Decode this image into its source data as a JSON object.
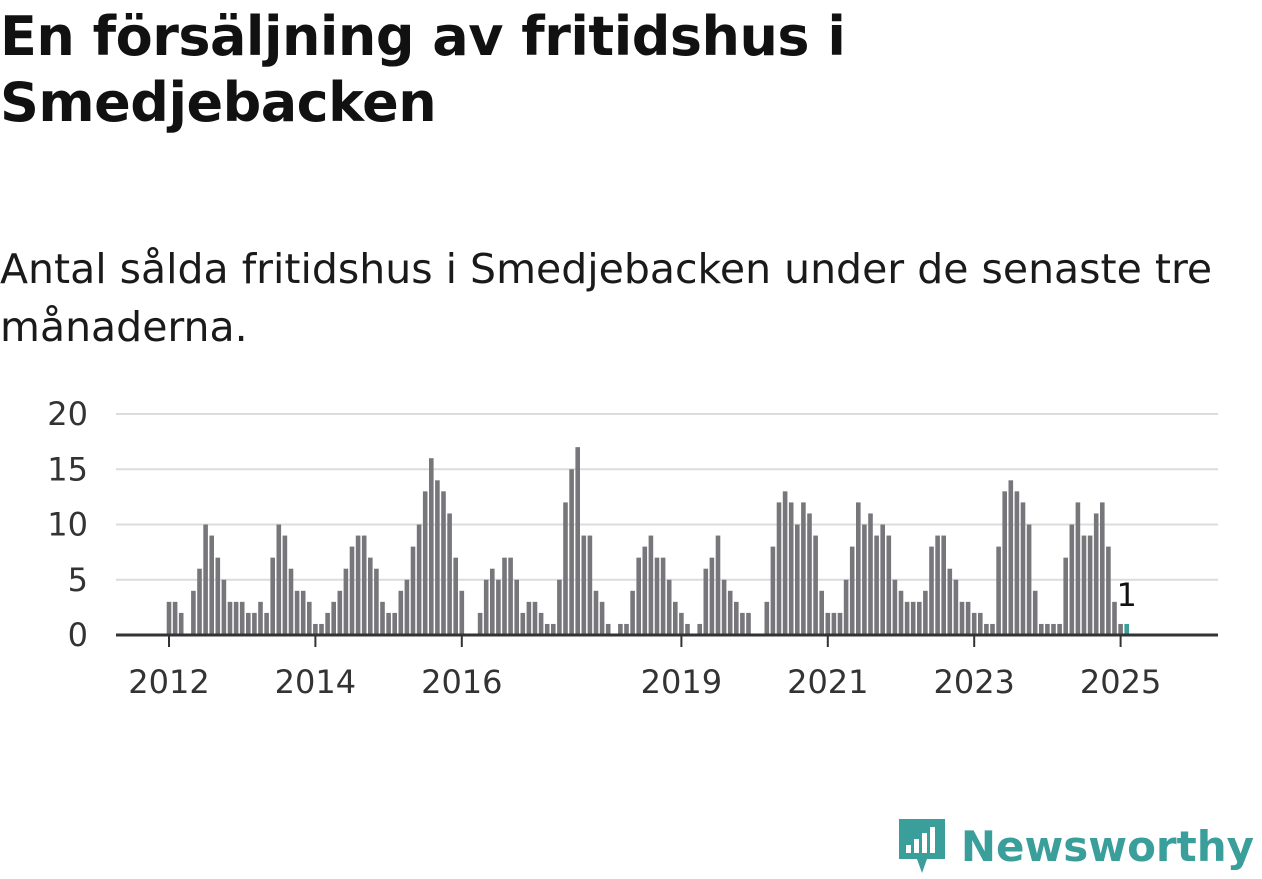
{
  "title": "En försäljning av fritidshus i Smedjebacken",
  "subtitle": "Antal sålda fritidshus i Smedjebacken under de senaste tre månaderna.",
  "brand": {
    "name": "Newsworthy",
    "icon": "newsworthy-logo-icon",
    "color": "#3a9e9b"
  },
  "colors": {
    "bar": "#77767b",
    "highlight": "#3a9e9b",
    "grid": "#dcdcdc",
    "axis": "#333333"
  },
  "chart_data": {
    "type": "bar",
    "title": "En försäljning av fritidshus i Smedjebacken",
    "xlabel": "",
    "ylabel": "",
    "x_start": "2012-01",
    "frequency": "monthly",
    "ylim": [
      0,
      20
    ],
    "yticks": [
      0,
      5,
      10,
      15,
      20
    ],
    "xticks": [
      {
        "label": "2012",
        "x": "2012-01"
      },
      {
        "label": "2014",
        "x": "2014-01"
      },
      {
        "label": "2016",
        "x": "2016-01"
      },
      {
        "label": "2019",
        "x": "2019-01"
      },
      {
        "label": "2021",
        "x": "2021-01"
      },
      {
        "label": "2023",
        "x": "2023-01"
      },
      {
        "label": "2025",
        "x": "2025-01"
      }
    ],
    "grid": true,
    "highlight_last": true,
    "last_value_label": "1",
    "values": [
      3,
      3,
      2,
      0,
      4,
      6,
      10,
      9,
      7,
      5,
      3,
      3,
      3,
      2,
      2,
      3,
      2,
      7,
      10,
      9,
      6,
      4,
      4,
      3,
      1,
      1,
      2,
      3,
      4,
      6,
      8,
      9,
      9,
      7,
      6,
      3,
      2,
      2,
      4,
      5,
      8,
      10,
      13,
      16,
      14,
      13,
      11,
      7,
      4,
      0,
      0,
      2,
      5,
      6,
      5,
      7,
      7,
      5,
      2,
      3,
      3,
      2,
      1,
      1,
      5,
      12,
      15,
      17,
      9,
      9,
      4,
      3,
      1,
      0,
      1,
      1,
      4,
      7,
      8,
      9,
      7,
      7,
      5,
      3,
      2,
      1,
      0,
      1,
      6,
      7,
      9,
      5,
      4,
      3,
      2,
      2,
      0,
      0,
      3,
      8,
      12,
      13,
      12,
      10,
      12,
      11,
      9,
      4,
      2,
      2,
      2,
      5,
      8,
      12,
      10,
      11,
      9,
      10,
      9,
      5,
      4,
      3,
      3,
      3,
      4,
      8,
      9,
      9,
      6,
      5,
      3,
      3,
      2,
      2,
      1,
      1,
      8,
      13,
      14,
      13,
      12,
      10,
      4,
      1,
      1,
      1,
      1,
      7,
      10,
      12,
      9,
      9,
      11,
      12,
      8,
      3,
      1,
      1
    ]
  }
}
